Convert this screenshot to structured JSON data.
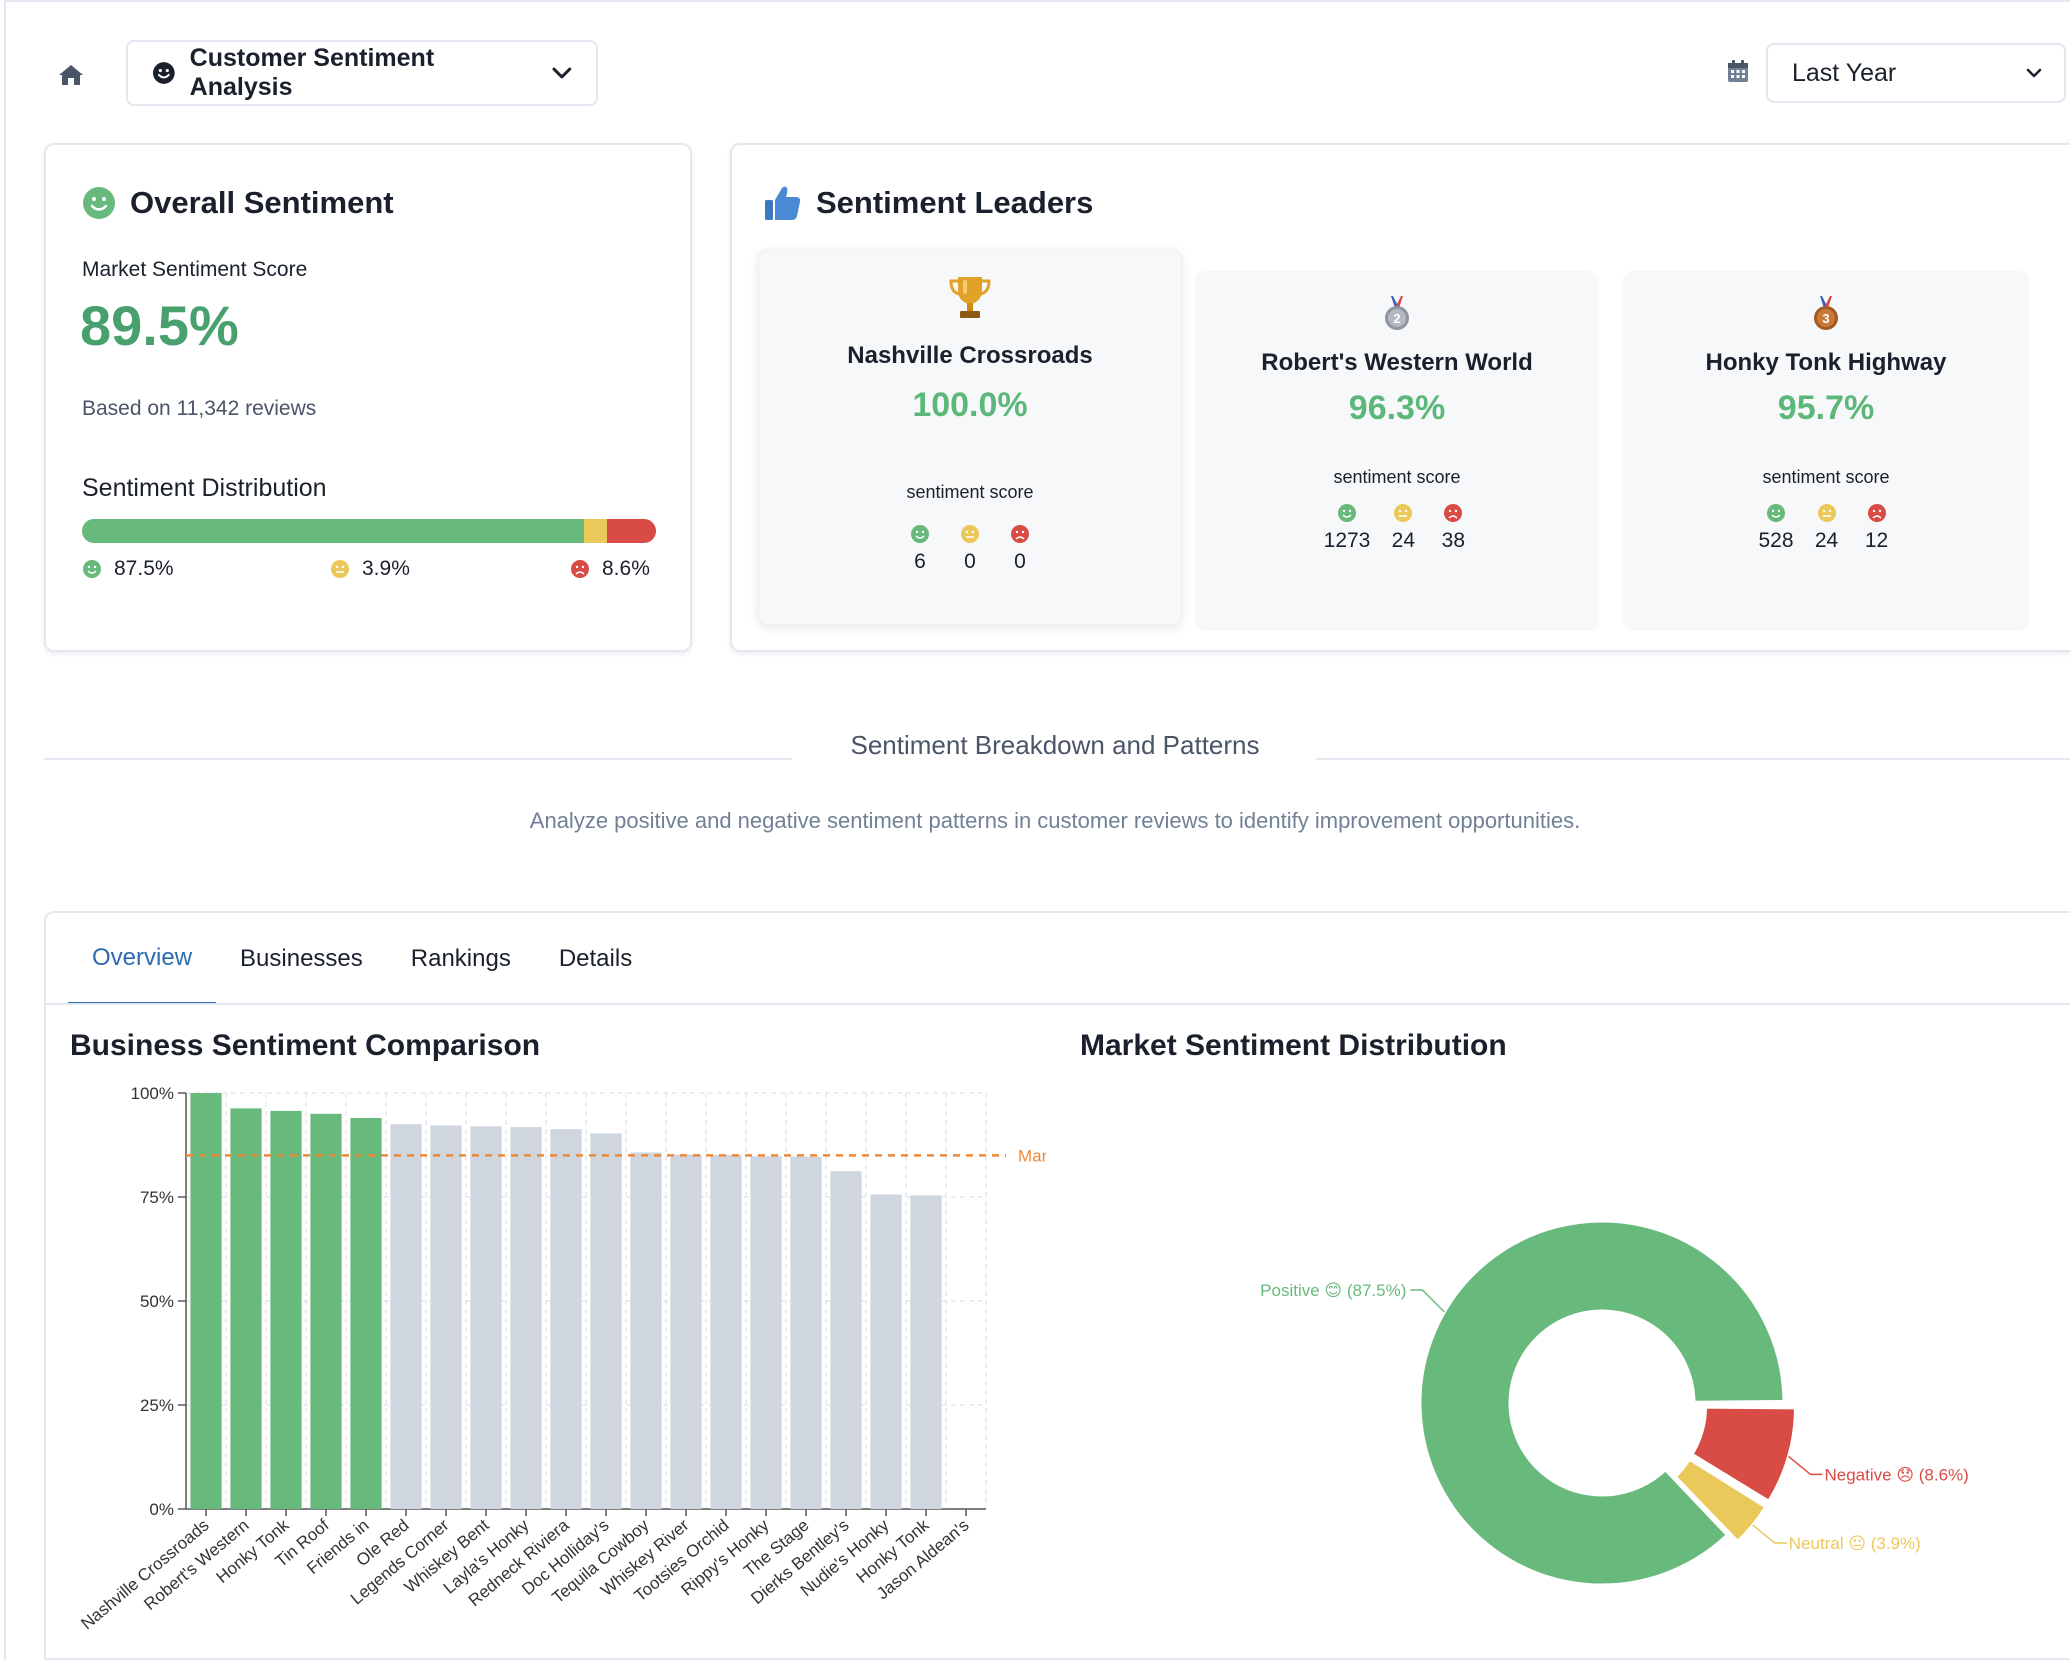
{
  "header": {
    "dashboard_label": "Customer Sentiment Analysis",
    "period_label": "Last Year"
  },
  "overall": {
    "title": "Overall Sentiment",
    "score_label": "Market Sentiment Score",
    "score": "89.5%",
    "reviews": "Based on 11,342 reviews",
    "dist_title": "Sentiment Distribution",
    "positive_pct": "87.5%",
    "neutral_pct": "3.9%",
    "negative_pct": "8.6%",
    "distribution": {
      "positive": 87.5,
      "neutral": 3.9,
      "negative": 8.6
    }
  },
  "leaders": {
    "title": "Sentiment Leaders",
    "caption": "sentiment score",
    "items": [
      {
        "name": "Nashville Crossroads",
        "score": "100.0%",
        "positive": "6",
        "neutral": "0",
        "negative": "0"
      },
      {
        "name": "Robert's Western World",
        "score": "96.3%",
        "positive": "1273",
        "neutral": "24",
        "negative": "38"
      },
      {
        "name": "Honky Tonk Highway",
        "score": "95.7%",
        "positive": "528",
        "neutral": "24",
        "negative": "12"
      }
    ]
  },
  "section": {
    "title": "Sentiment Breakdown and Patterns",
    "subtitle": "Analyze positive and negative sentiment patterns in customer reviews to identify improvement opportunities."
  },
  "tabs": [
    "Overview",
    "Businesses",
    "Rankings",
    "Details"
  ],
  "colors": {
    "positive": "#68b97c",
    "neutral": "#ebc85a",
    "negative": "#d94b45",
    "bar_gray": "#cfd6e0",
    "average_line": "#ec8a3a",
    "accent": "#2b6cb0"
  },
  "chart_data": [
    {
      "type": "bar",
      "title": "Business Sentiment Comparison",
      "categories": [
        "Nashville Crossroads",
        "Robert's Western",
        "Honky Tonk",
        "Tin Roof",
        "Friends in",
        "Ole Red",
        "Legends Corner",
        "Whiskey Bent",
        "Layla's Honky",
        "Redneck Riviera",
        "Doc Holliday's",
        "Tequila Cowboy",
        "Whiskey River",
        "Tootsies Orchid",
        "Rippy's Honky",
        "The Stage",
        "Dierks Bentley's",
        "Nudie's Honky",
        "Honky Tonk",
        "Jason Aldean's"
      ],
      "values": [
        100,
        96.3,
        95.7,
        95,
        94,
        92.5,
        92.2,
        92,
        91.8,
        91.3,
        90.3,
        85.7,
        85.2,
        85.1,
        84.8,
        84.7,
        81.2,
        75.6,
        75.4,
        0
      ],
      "highlighted": [
        true,
        true,
        true,
        true,
        true,
        false,
        false,
        false,
        false,
        false,
        false,
        false,
        false,
        false,
        false,
        false,
        false,
        false,
        false,
        false
      ],
      "yticks": [
        "0%",
        "25%",
        "50%",
        "75%",
        "100%"
      ],
      "ylim": [
        0,
        100
      ],
      "reference_line": {
        "value": 85,
        "label": "Mark"
      }
    },
    {
      "type": "pie",
      "title": "Market Sentiment Distribution",
      "slices": [
        {
          "name": "Positive",
          "value": 87.5,
          "label": "Positive 😊 (87.5%)"
        },
        {
          "name": "Negative",
          "value": 8.6,
          "label": "Negative 😞 (8.6%)"
        },
        {
          "name": "Neutral",
          "value": 3.9,
          "label": "Neutral 😐 (3.9%)"
        }
      ]
    }
  ]
}
